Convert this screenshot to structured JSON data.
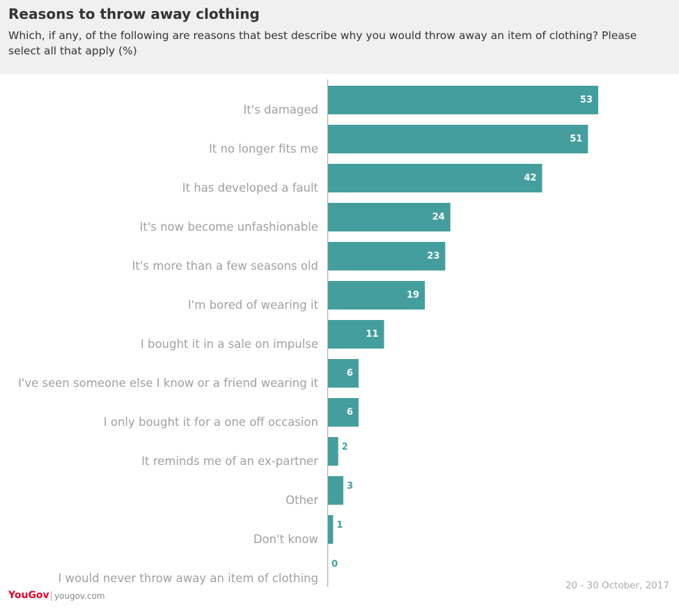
{
  "chart_data": {
    "type": "barh",
    "title": "Reasons to throw away clothing",
    "subtitle": "Which, if any, of the following are reasons that best describe why you would throw away an item of clothing? Please select all that apply (%)",
    "categories": [
      "It's damaged",
      "It no longer fits me",
      "It has developed a fault",
      "It's now become unfashionable",
      "It's more than a few seasons old",
      "I'm bored of wearing it",
      "I bought it in a sale on impulse",
      "I've seen someone else I know or a friend wearing it",
      "I only bought it for a one off occasion",
      "It reminds me of an ex-partner",
      "Other",
      "Don't know",
      "I would never throw away an item of clothing"
    ],
    "values": [
      53,
      51,
      42,
      24,
      23,
      19,
      11,
      6,
      6,
      2,
      3,
      1,
      0
    ],
    "color": "#459e9e",
    "date": "20 - 30 October, 2017",
    "brand": "YouGov",
    "source": "yougov.com"
  }
}
